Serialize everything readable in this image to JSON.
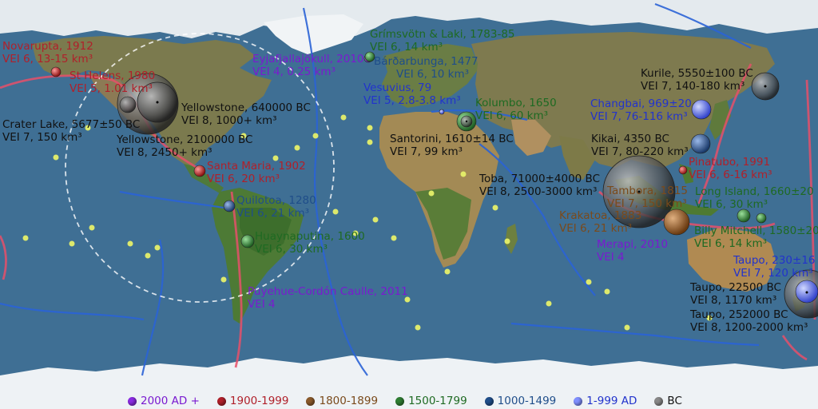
{
  "legend": {
    "items": [
      {
        "label": "2000 AD +",
        "color": "#8a2be2"
      },
      {
        "label": "1900-1999",
        "color": "#b0202a"
      },
      {
        "label": "1800-1899",
        "color": "#8a5a2b"
      },
      {
        "label": "1500-1799",
        "color": "#2e7d32"
      },
      {
        "label": "1000-1499",
        "color": "#1f4e8a"
      },
      {
        "label": "1-999 AD",
        "color": "#2233cc"
      },
      {
        "label": "BC",
        "color": "#666666"
      }
    ]
  },
  "volcanoes": [
    {
      "name": "Novarupta, 1912",
      "vei": "VEI 6, 13-15 km³",
      "color": "#b0202a"
    },
    {
      "name": "St Helens, 1980",
      "vei": "VEI 5, 1.01 km³",
      "color": "#b0202a"
    },
    {
      "name": "Yellowstone, 640000 BC",
      "vei": "VEI 8, 1000+ km³",
      "color": "#111111"
    },
    {
      "name": "Crater Lake, 5677±50 BC",
      "vei": "VEI 7, 150 km³",
      "color": "#111111"
    },
    {
      "name": "Yellowstone, 2100000 BC",
      "vei": "VEI 8, 2450+ km³",
      "color": "#111111"
    },
    {
      "name": "Santa Maria, 1902",
      "vei": "VEI 6, 20 km³",
      "color": "#b0202a"
    },
    {
      "name": "Quilotoa, 1280",
      "vei": "VEI 6, 21 km³",
      "color": "#1f4e8a"
    },
    {
      "name": "Huaynaputina, 1600",
      "vei": "VEI 6, 30 km³",
      "color": "#2e7d32"
    },
    {
      "name": "Puyehue-Cordón Caulle, 2011",
      "vei": "VEI 4",
      "color": "#8a2be2"
    },
    {
      "name": "Eyjafjallajökull, 2010",
      "vei": "VEI 4, 0.25 km³",
      "color": "#8a2be2"
    },
    {
      "name": "Grímsvötn & Laki, 1783-85",
      "vei": "VEI 6, 14 km³",
      "color": "#2e7d32"
    },
    {
      "name": "Bárðarbunga, 1477",
      "vei": "VEI 6, 10 km³",
      "color": "#1f4e8a"
    },
    {
      "name": "Vesuvius, 79",
      "vei": "VEI 5, 2.8-3.8 km³",
      "color": "#2233cc"
    },
    {
      "name": "Kolumbo, 1650",
      "vei": "VEI 6, 60 km³",
      "color": "#2e7d32"
    },
    {
      "name": "Santorini, 1610±14 BC",
      "vei": "VEI 7, 99 km³",
      "color": "#111111"
    },
    {
      "name": "Toba, 71000±4000 BC",
      "vei": "VEI 8, 2500-3000 km³",
      "color": "#111111"
    },
    {
      "name": "Kurile, 5550±100 BC",
      "vei": "VEI 7, 140-180 km³",
      "color": "#111111"
    },
    {
      "name": "Changbai, 969±20",
      "vei": "VEI 7, 76-116 km³",
      "color": "#2233cc"
    },
    {
      "name": "Kikai, 4350 BC",
      "vei": "VEI 7, 80-220 km³",
      "color": "#111111"
    },
    {
      "name": "Pinatubo, 1991",
      "vei": "VEI 6, 6-16 km³",
      "color": "#b0202a"
    },
    {
      "name": "Tambora, 1815",
      "vei": "VEI 7, 150 km³",
      "color": "#8a5a2b"
    },
    {
      "name": "Long Island, 1660±20",
      "vei": "VEI 6, 30 km³",
      "color": "#2e7d32"
    },
    {
      "name": "Krakatoa, 1883",
      "vei": "VEI 6, 21 km³",
      "color": "#8a5a2b"
    },
    {
      "name": "Billy Mitchell, 1580±20",
      "vei": "VEI 6, 14 km³",
      "color": "#2e7d32"
    },
    {
      "name": "Merapi, 2010",
      "vei": "VEI 4",
      "color": "#8a2be2"
    },
    {
      "name": "Taupo, 230±16",
      "vei": "VEI 7, 120 km³",
      "color": "#2233cc"
    },
    {
      "name": "Taupo, 22500 BC",
      "vei": "VEI 8, 1170 km³",
      "color": "#111111"
    },
    {
      "name": "Taupo, 252000 BC",
      "vei": "VEI 8, 1200-2000 km³",
      "color": "#111111"
    }
  ]
}
